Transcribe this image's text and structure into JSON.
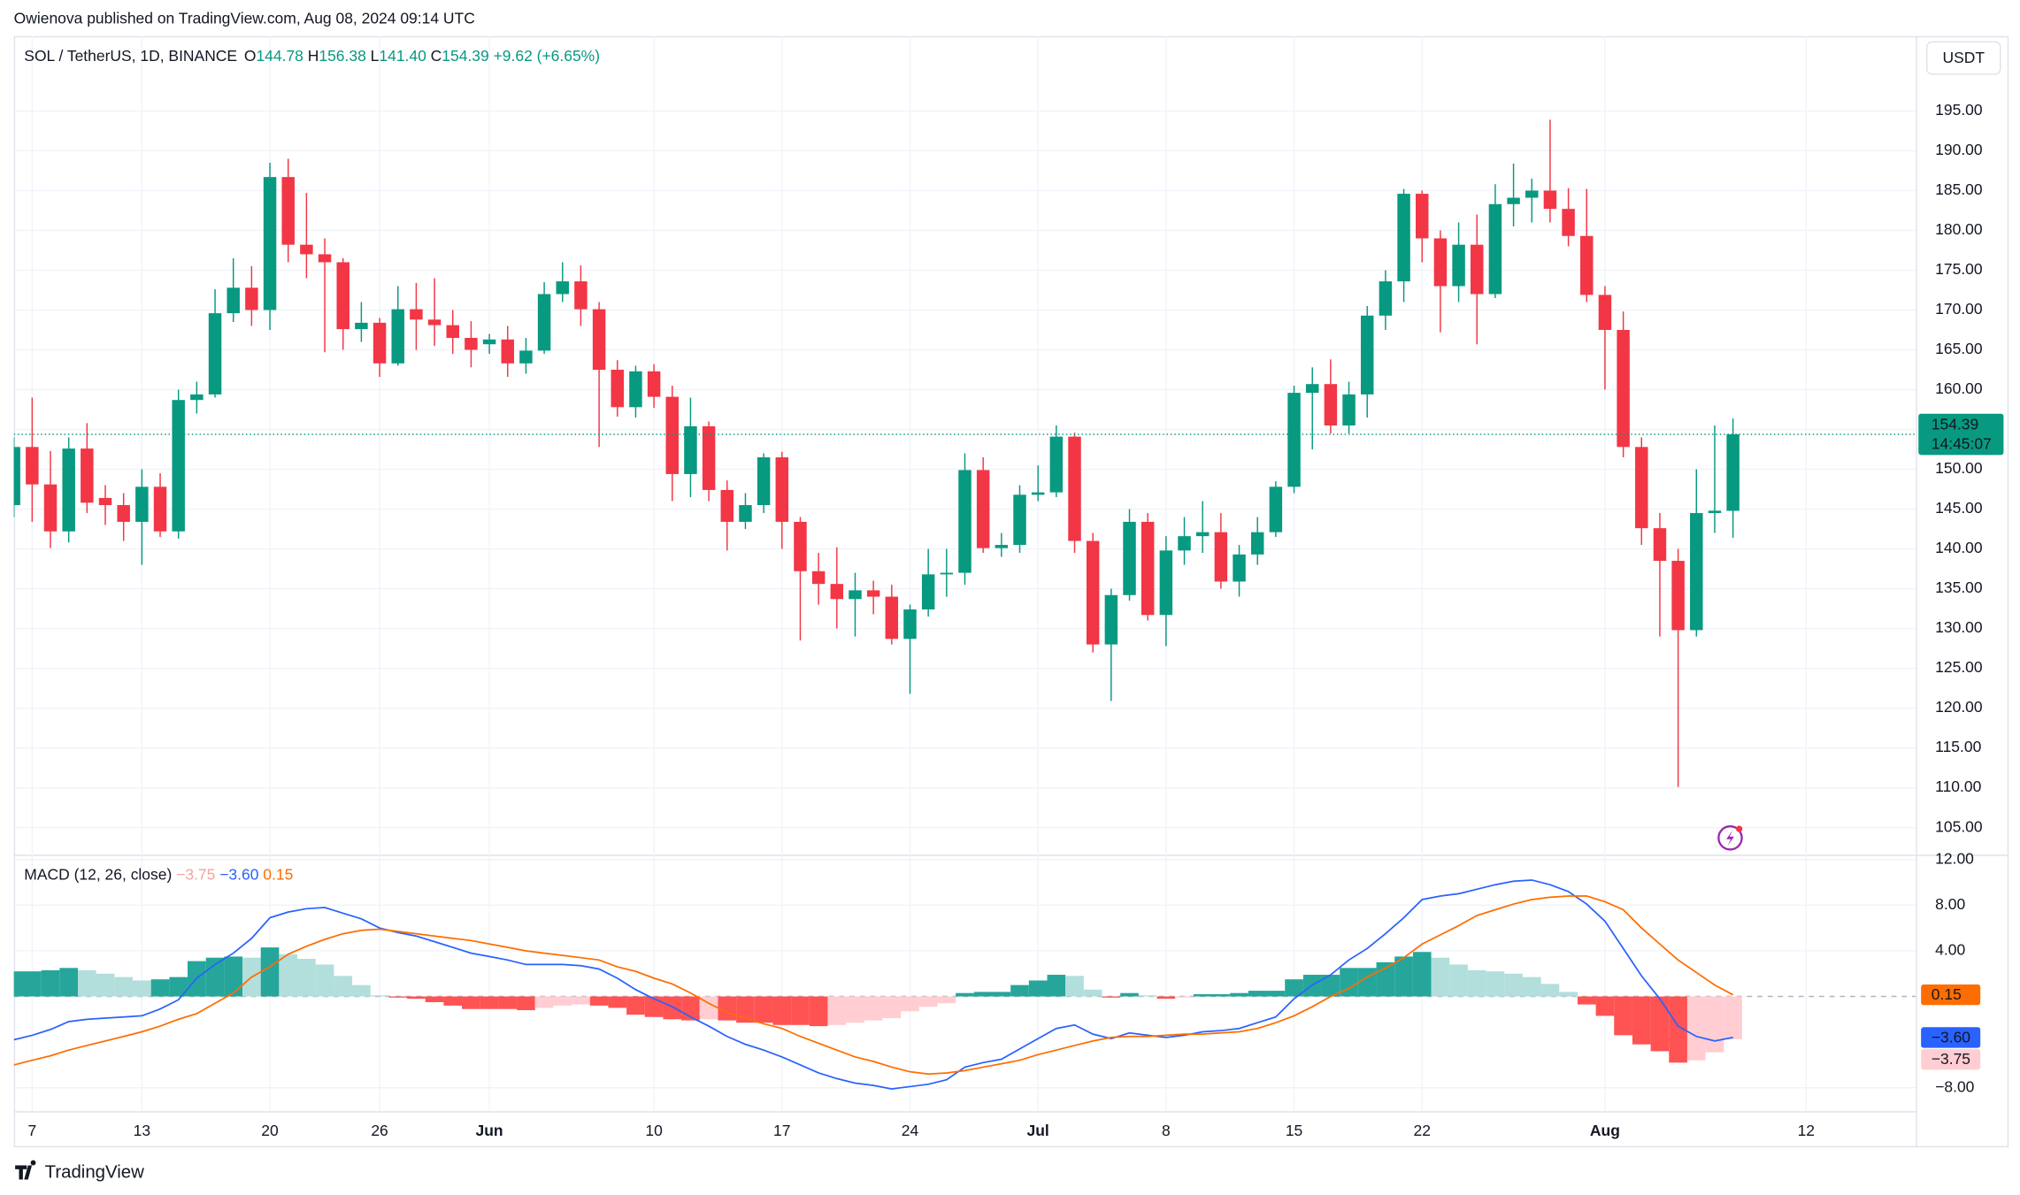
{
  "header": "Owienova published on TradingView.com, Aug 08, 2024 09:14 UTC",
  "currency": "USDT",
  "brand": "TradingView",
  "chart_data": [
    {
      "type": "candlestick",
      "title": "SOL / TetherUS, 1D, BINANCE",
      "legend": [
        {
          "label": "O",
          "value": "144.78"
        },
        {
          "label": "H",
          "value": "156.38"
        },
        {
          "label": "L",
          "value": "141.40"
        },
        {
          "label": "C",
          "value": "154.39"
        }
      ],
      "change": "+9.62 (+6.65%)",
      "countdown": "14:45:07",
      "up_color": "#089981",
      "down_color": "#f23645",
      "grid": true,
      "x": [
        "2024-05-06",
        "2024-05-07",
        "2024-05-08",
        "2024-05-09",
        "2024-05-10",
        "2024-05-11",
        "2024-05-12",
        "2024-05-13",
        "2024-05-14",
        "2024-05-15",
        "2024-05-16",
        "2024-05-17",
        "2024-05-18",
        "2024-05-19",
        "2024-05-20",
        "2024-05-21",
        "2024-05-22",
        "2024-05-23",
        "2024-05-24",
        "2024-05-25",
        "2024-05-26",
        "2024-05-27",
        "2024-05-28",
        "2024-05-29",
        "2024-05-30",
        "2024-05-31",
        "2024-06-01",
        "2024-06-02",
        "2024-06-03",
        "2024-06-04",
        "2024-06-05",
        "2024-06-06",
        "2024-06-07",
        "2024-06-08",
        "2024-06-09",
        "2024-06-10",
        "2024-06-11",
        "2024-06-12",
        "2024-06-13",
        "2024-06-14",
        "2024-06-15",
        "2024-06-16",
        "2024-06-17",
        "2024-06-18",
        "2024-06-19",
        "2024-06-20",
        "2024-06-21",
        "2024-06-22",
        "2024-06-23",
        "2024-06-24",
        "2024-06-25",
        "2024-06-26",
        "2024-06-27",
        "2024-06-28",
        "2024-06-29",
        "2024-06-30",
        "2024-07-01",
        "2024-07-02",
        "2024-07-03",
        "2024-07-04",
        "2024-07-05",
        "2024-07-06",
        "2024-07-07",
        "2024-07-08",
        "2024-07-09",
        "2024-07-10",
        "2024-07-11",
        "2024-07-12",
        "2024-07-13",
        "2024-07-14",
        "2024-07-15",
        "2024-07-16",
        "2024-07-17",
        "2024-07-18",
        "2024-07-19",
        "2024-07-20",
        "2024-07-21",
        "2024-07-22",
        "2024-07-23",
        "2024-07-24",
        "2024-07-25",
        "2024-07-26",
        "2024-07-27",
        "2024-07-28",
        "2024-07-29",
        "2024-07-30",
        "2024-07-31",
        "2024-08-01",
        "2024-08-02",
        "2024-08-03",
        "2024-08-04",
        "2024-08-05",
        "2024-08-06",
        "2024-08-07",
        "2024-08-08"
      ],
      "open": [
        145.5,
        152.8,
        148.1,
        142.2,
        152.6,
        146.4,
        145.5,
        143.4,
        147.8,
        142.2,
        158.7,
        159.4,
        169.6,
        172.8,
        170,
        186.7,
        178.2,
        177,
        176,
        167.6,
        168.4,
        163.3,
        170.1,
        168.8,
        168.1,
        166.5,
        165.7,
        166.3,
        163.3,
        164.9,
        172,
        173.6,
        170.1,
        162.5,
        157.8,
        162.3,
        159.1,
        149.4,
        155.4,
        147.4,
        143.4,
        145.5,
        151.5,
        143.4,
        137.2,
        135.6,
        133.7,
        134.8,
        134,
        128.7,
        132.4,
        136.8,
        137,
        149.9,
        140.1,
        140.5,
        146.8,
        147.1,
        154.1,
        141,
        128,
        134.2,
        143.4,
        131.7,
        139.8,
        141.6,
        142.1,
        135.9,
        139.3,
        142.1,
        147.8,
        159.6,
        160.7,
        155.5,
        159.4,
        169.3,
        173.6,
        184.6,
        179,
        173,
        178.2,
        172,
        183.3,
        184.1,
        185,
        182.7,
        179.3,
        171.9,
        167.5,
        152.8,
        142.6,
        138.5,
        129.8,
        144.5,
        144.78
      ],
      "high": [
        154,
        159,
        152.3,
        154,
        155.8,
        148,
        147,
        150,
        149.5,
        160,
        161,
        172.6,
        176.5,
        175.5,
        188.5,
        189,
        184.7,
        179,
        176.5,
        171,
        169,
        173,
        173.4,
        174,
        170,
        168.6,
        167,
        168,
        166.5,
        173.5,
        176,
        175.6,
        171,
        163.7,
        163,
        163.2,
        160.5,
        159,
        156,
        148.6,
        147,
        152,
        152.2,
        144,
        139.5,
        140.2,
        137,
        136,
        135.5,
        133,
        140,
        140,
        152,
        151.5,
        142,
        148,
        150.5,
        155.5,
        154.6,
        142,
        135,
        145,
        144.5,
        141.6,
        144,
        146,
        144.5,
        140.5,
        144,
        148.5,
        160.5,
        162.8,
        163.8,
        161,
        170.5,
        175,
        185.2,
        185,
        180,
        181,
        182,
        185.8,
        188.4,
        186.5,
        193.9,
        185.3,
        185.2,
        173,
        169.8,
        154,
        144.5,
        140,
        150,
        155.5,
        156.38
      ],
      "low": [
        144,
        143.4,
        140.1,
        140.8,
        144.5,
        143,
        141,
        138,
        141.5,
        141.3,
        157,
        159,
        168.5,
        168,
        167.5,
        176,
        174,
        164.7,
        165,
        166,
        161.6,
        163,
        165,
        165.5,
        164.5,
        162.8,
        164.5,
        161.6,
        162,
        164.5,
        171,
        168,
        152.8,
        156.6,
        156.5,
        157.7,
        146,
        146.5,
        146,
        139.8,
        142.5,
        144.5,
        140,
        128.5,
        133,
        130,
        129,
        131.8,
        128,
        121.8,
        131.5,
        134,
        135.5,
        139.5,
        139,
        139.5,
        146,
        146.5,
        139.5,
        127,
        120.9,
        133.5,
        131,
        127.8,
        138,
        139.5,
        135,
        134,
        138,
        141.5,
        147,
        152.5,
        154.5,
        154.5,
        156.5,
        167.5,
        171,
        176,
        167.2,
        171,
        165.7,
        171.5,
        180.5,
        181,
        181,
        178,
        171,
        160,
        151.5,
        140.5,
        129,
        110.1,
        129,
        142,
        141.4
      ],
      "close": [
        152.8,
        148.1,
        142.2,
        152.6,
        145.8,
        145.5,
        143.4,
        147.8,
        142.2,
        158.7,
        159.4,
        169.6,
        172.8,
        170,
        186.7,
        178.2,
        177,
        176,
        167.6,
        168.4,
        163.3,
        170.1,
        168.8,
        168.1,
        166.5,
        165,
        166.3,
        163.3,
        164.9,
        172,
        173.6,
        170.1,
        162.5,
        157.8,
        162.3,
        159.1,
        149.4,
        155.4,
        147.4,
        143.4,
        145.5,
        151.5,
        143.4,
        137.2,
        135.6,
        133.7,
        134.8,
        134,
        128.7,
        132.4,
        136.8,
        137,
        149.9,
        140.1,
        140.5,
        146.8,
        147.1,
        154.1,
        141,
        128,
        134.2,
        143.4,
        131.7,
        139.8,
        141.6,
        142.1,
        135.9,
        139.3,
        142.1,
        147.8,
        159.6,
        160.7,
        155.5,
        159.4,
        169.3,
        173.6,
        184.6,
        179,
        173,
        178.2,
        172,
        183.3,
        184.1,
        185,
        182.7,
        179.3,
        171.9,
        167.5,
        152.8,
        142.6,
        138.5,
        129.8,
        144.5,
        144.8,
        154.39
      ],
      "xlim": [
        "2024-05-06",
        "2024-08-18"
      ],
      "xticks": [
        {
          "value": "2024-05-07",
          "label": "7"
        },
        {
          "value": "2024-05-13",
          "label": "13"
        },
        {
          "value": "2024-05-20",
          "label": "20"
        },
        {
          "value": "2024-05-26",
          "label": "26"
        },
        {
          "value": "2024-06-01",
          "label": "Jun"
        },
        {
          "value": "2024-06-10",
          "label": "10"
        },
        {
          "value": "2024-06-17",
          "label": "17"
        },
        {
          "value": "2024-06-24",
          "label": "24"
        },
        {
          "value": "2024-07-01",
          "label": "Jul"
        },
        {
          "value": "2024-07-08",
          "label": "8"
        },
        {
          "value": "2024-07-15",
          "label": "15"
        },
        {
          "value": "2024-07-22",
          "label": "22"
        },
        {
          "value": "2024-08-01",
          "label": "Aug"
        },
        {
          "value": "2024-08-12",
          "label": "12"
        }
      ],
      "ylim": [
        101.6,
        204.4
      ],
      "yticks": [
        {
          "value": 105,
          "label": "105.00"
        },
        {
          "value": 110,
          "label": "110.00"
        },
        {
          "value": 115,
          "label": "115.00"
        },
        {
          "value": 120,
          "label": "120.00"
        },
        {
          "value": 125,
          "label": "125.00"
        },
        {
          "value": 130,
          "label": "130.00"
        },
        {
          "value": 135,
          "label": "135.00"
        },
        {
          "value": 140,
          "label": "140.00"
        },
        {
          "value": 145,
          "label": "145.00"
        },
        {
          "value": 150,
          "label": "150.00"
        },
        {
          "value": 155,
          "label": "155.00"
        },
        {
          "value": 160,
          "label": "160.00"
        },
        {
          "value": 165,
          "label": "165.00"
        },
        {
          "value": 170,
          "label": "170.00"
        },
        {
          "value": 175,
          "label": "175.00"
        },
        {
          "value": 180,
          "label": "180.00"
        },
        {
          "value": 185,
          "label": "185.00"
        },
        {
          "value": 190,
          "label": "190.00"
        },
        {
          "value": 195,
          "label": "195.00"
        }
      ]
    },
    {
      "type": "macd",
      "title": "MACD (12, 26, close)",
      "histogram": {
        "last_label": "−3.75",
        "label_color": "#f7a1a1",
        "colors": {
          "rise_above": "#26a69a",
          "fall_above": "#b2dfdb",
          "fall_below": "#ff5252",
          "rise_below": "#ffcdd2"
        },
        "values": [
          2.2,
          2.2,
          2.3,
          2.5,
          2.3,
          2.0,
          1.7,
          1.4,
          1.5,
          1.7,
          3.1,
          3.4,
          3.5,
          3.4,
          4.3,
          3.7,
          3.3,
          2.8,
          1.8,
          1.0,
          0.1,
          -0.1,
          -0.2,
          -0.5,
          -0.8,
          -1.1,
          -1.1,
          -1.1,
          -1.2,
          -1.0,
          -0.8,
          -0.7,
          -0.8,
          -1.0,
          -1.6,
          -1.8,
          -2.0,
          -2.1,
          -2.0,
          -2.1,
          -2.3,
          -2.3,
          -2.5,
          -2.5,
          -2.6,
          -2.5,
          -2.3,
          -2.1,
          -1.9,
          -1.3,
          -0.9,
          -0.6,
          0.3,
          0.4,
          0.4,
          1.0,
          1.4,
          1.9,
          1.8,
          0.6,
          -0.1,
          0.3,
          0.1,
          -0.2,
          -0.1,
          0.2,
          0.2,
          0.3,
          0.5,
          0.5,
          1.5,
          1.9,
          1.9,
          2.5,
          2.5,
          3.0,
          3.5,
          3.9,
          3.4,
          2.8,
          2.3,
          2.2,
          2.0,
          1.7,
          1.1,
          0.4,
          -0.7,
          -1.7,
          -3.4,
          -4.2,
          -4.8,
          -5.8,
          -5.6,
          -4.9,
          -3.75
        ]
      },
      "series": [
        {
          "color": "#2962ff",
          "last_label": "−3.60",
          "values": [
            -3.8,
            -3.4,
            -2.9,
            -2.2,
            -2.0,
            -1.9,
            -1.8,
            -1.7,
            -1.1,
            -0.3,
            1.6,
            2.8,
            3.8,
            5.1,
            6.9,
            7.4,
            7.7,
            7.8,
            7.3,
            6.8,
            6.0,
            5.6,
            5.3,
            4.8,
            4.3,
            3.8,
            3.5,
            3.2,
            2.8,
            2.8,
            2.8,
            2.7,
            2.4,
            1.6,
            0.6,
            -0.2,
            -0.9,
            -1.8,
            -2.6,
            -3.5,
            -4.2,
            -4.7,
            -5.3,
            -6.0,
            -6.7,
            -7.2,
            -7.6,
            -7.8,
            -8.1,
            -7.9,
            -7.7,
            -7.3,
            -6.2,
            -5.8,
            -5.5,
            -4.6,
            -3.7,
            -2.8,
            -2.5,
            -3.3,
            -3.7,
            -3.2,
            -3.4,
            -3.6,
            -3.4,
            -3.1,
            -3.0,
            -2.8,
            -2.3,
            -1.8,
            -0.2,
            1.0,
            1.9,
            3.2,
            4.2,
            5.5,
            6.9,
            8.5,
            8.8,
            9.0,
            9.4,
            9.8,
            10.1,
            10.2,
            9.8,
            9.2,
            8.1,
            6.6,
            4.2,
            1.8,
            -0.2,
            -2.6,
            -3.5,
            -3.9,
            -3.6
          ]
        },
        {
          "color": "#ff6d00",
          "last_label": "0.15",
          "values": [
            -6.0,
            -5.6,
            -5.2,
            -4.7,
            -4.3,
            -3.9,
            -3.5,
            -3.1,
            -2.6,
            -2.0,
            -1.5,
            -0.6,
            0.3,
            1.7,
            2.6,
            3.7,
            4.4,
            5.0,
            5.5,
            5.8,
            5.9,
            5.7,
            5.5,
            5.3,
            5.1,
            4.9,
            4.6,
            4.3,
            4.0,
            3.8,
            3.6,
            3.4,
            3.2,
            2.6,
            2.2,
            1.6,
            1.1,
            0.3,
            -0.6,
            -1.4,
            -1.9,
            -2.4,
            -2.8,
            -3.5,
            -4.1,
            -4.7,
            -5.3,
            -5.7,
            -6.2,
            -6.6,
            -6.8,
            -6.7,
            -6.5,
            -6.2,
            -5.9,
            -5.6,
            -5.1,
            -4.7,
            -4.3,
            -3.9,
            -3.6,
            -3.5,
            -3.5,
            -3.4,
            -3.3,
            -3.3,
            -3.2,
            -3.1,
            -2.8,
            -2.3,
            -1.7,
            -0.9,
            0.0,
            0.7,
            1.7,
            2.5,
            3.4,
            4.6,
            5.4,
            6.2,
            7.1,
            7.6,
            8.1,
            8.5,
            8.7,
            8.8,
            8.8,
            8.3,
            7.6,
            6.0,
            4.6,
            3.2,
            2.1,
            1.0,
            0.15
          ]
        }
      ],
      "ylim": [
        -10.06,
        12.43
      ],
      "yticks": [
        {
          "value": 12,
          "label": "12.00"
        },
        {
          "value": 8,
          "label": "8.00"
        },
        {
          "value": 4,
          "label": "4.00"
        },
        {
          "value": -8,
          "label": "−8.00"
        }
      ]
    }
  ]
}
